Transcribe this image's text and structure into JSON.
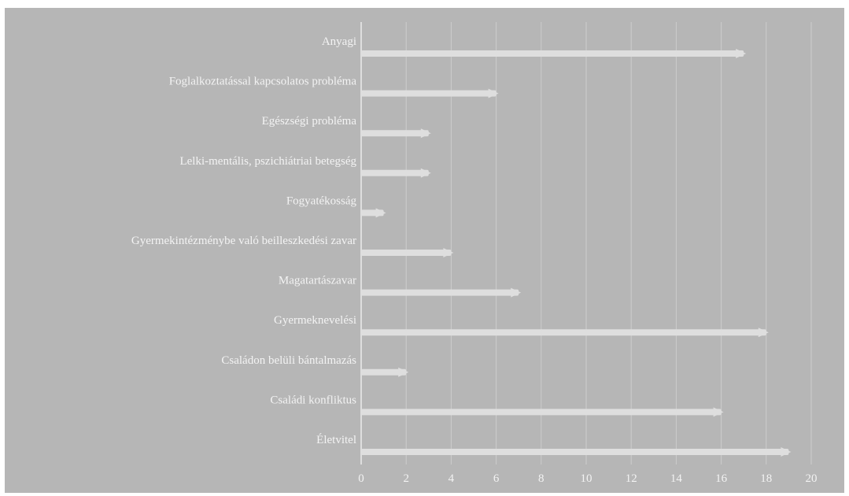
{
  "chart_data": {
    "type": "bar",
    "orientation": "horizontal",
    "categories": [
      "Anyagi",
      "Foglalkoztatással kapcsolatos probléma",
      "Egészségi probléma",
      "Lelki-mentális, pszichiátriai betegség",
      "Fogyatékosság",
      "Gyermekintézménybe való beilleszkedési zavar",
      "Magatartászavar",
      "Gyermeknevelési",
      "Családon belüli bántalmazás",
      "Családi konfliktus",
      "Életvitel"
    ],
    "values": [
      17,
      6,
      3,
      3,
      1,
      4,
      7,
      18,
      2,
      16,
      19
    ],
    "xlim": [
      0,
      20
    ],
    "xticks": [
      "0",
      "2",
      "4",
      "6",
      "8",
      "10",
      "12",
      "14",
      "16",
      "18",
      "20"
    ],
    "grid": true,
    "colors": {
      "background": "#b6b6b6",
      "bar": "#dedede",
      "gridline": "#cdcdcd",
      "text": "#f3f3f3"
    }
  }
}
